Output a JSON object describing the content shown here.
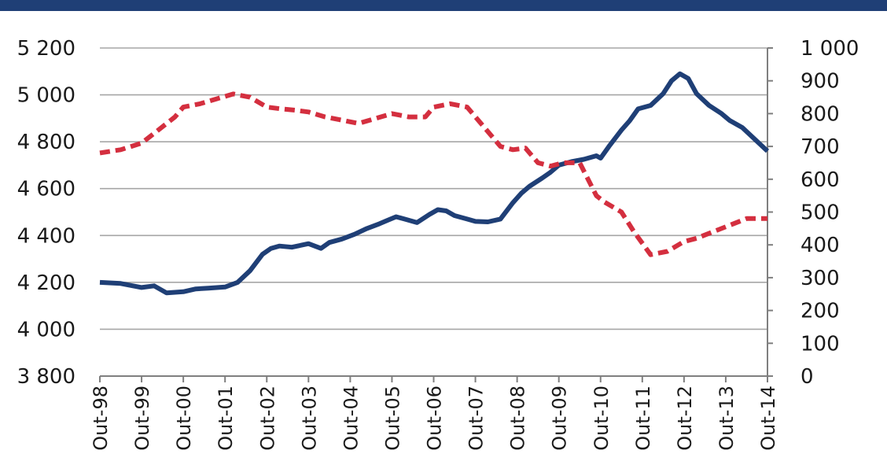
{
  "header": {
    "banner_text": "",
    "banner_color": "#1f3f76"
  },
  "chart_data": {
    "type": "line",
    "title": "",
    "xlabel": "",
    "ylabel": "",
    "y2label": "",
    "grid": "horizontal",
    "legend": "none",
    "x_tick_labels": [
      "Out-98",
      "Out-99",
      "Out-00",
      "Out-01",
      "Out-02",
      "Out-03",
      "Out-04",
      "Out-05",
      "Out-06",
      "Out-07",
      "Out-08",
      "Out-09",
      "Out-10",
      "Out-11",
      "Out-12",
      "Out-13",
      "Out-14"
    ],
    "y_left": {
      "range": [
        3800,
        5200
      ],
      "ticks": [
        3800,
        4000,
        4200,
        4400,
        4600,
        4800,
        5000,
        5200
      ],
      "tick_labels": [
        "3 800",
        "4 000",
        "4 200",
        "4 400",
        "4 600",
        "4 800",
        "5 000",
        "5 200"
      ]
    },
    "y_right": {
      "range": [
        0,
        1000
      ],
      "ticks": [
        0,
        100,
        200,
        300,
        400,
        500,
        600,
        700,
        800,
        900,
        1000
      ],
      "tick_labels": [
        "0",
        "100",
        "200",
        "300",
        "400",
        "500",
        "600",
        "700",
        "800",
        "900",
        "1 000"
      ]
    },
    "series": [
      {
        "axis": "left",
        "style": "solid",
        "color": "#1f3f76",
        "x": [
          0,
          0.5,
          1,
          1.3,
          1.6,
          2,
          2.3,
          2.6,
          3,
          3.3,
          3.6,
          3.9,
          4.1,
          4.3,
          4.6,
          5,
          5.3,
          5.5,
          5.8,
          6.1,
          6.4,
          6.7,
          6.9,
          7.1,
          7.3,
          7.6,
          7.9,
          8.1,
          8.3,
          8.5,
          8.8,
          9,
          9.3,
          9.6,
          9.9,
          10.1,
          10.3,
          10.6,
          10.8,
          11,
          11.3,
          11.6,
          11.9,
          12,
          12.2,
          12.5,
          12.7,
          12.9,
          13.2,
          13.5,
          13.7,
          13.9,
          14.1,
          14.3,
          14.6,
          14.9,
          15.1,
          15.4,
          15.7,
          16
        ],
        "y": [
          4200,
          4195,
          4178,
          4185,
          4155,
          4160,
          4172,
          4175,
          4180,
          4200,
          4250,
          4320,
          4345,
          4355,
          4350,
          4365,
          4345,
          4370,
          4385,
          4405,
          4430,
          4450,
          4465,
          4480,
          4470,
          4455,
          4490,
          4510,
          4505,
          4485,
          4470,
          4460,
          4458,
          4470,
          4540,
          4580,
          4610,
          4645,
          4670,
          4700,
          4715,
          4725,
          4740,
          4730,
          4780,
          4850,
          4890,
          4940,
          4955,
          5005,
          5060,
          5090,
          5070,
          5005,
          4955,
          4920,
          4890,
          4860,
          4810,
          4760
        ]
      },
      {
        "axis": "right",
        "style": "dashed",
        "color": "#d42f3f",
        "x": [
          0,
          0.5,
          1,
          1.4,
          1.8,
          2,
          2.4,
          2.8,
          3.2,
          3.6,
          4,
          4.3,
          4.7,
          5,
          5.4,
          5.8,
          6.2,
          6.6,
          7,
          7.4,
          7.8,
          8,
          8.4,
          8.8,
          9.2,
          9.6,
          9.9,
          10.2,
          10.5,
          10.8,
          11.1,
          11.5,
          11.9,
          12.1,
          12.5,
          12.8,
          13.2,
          13.6,
          14,
          14.3,
          14.7,
          15.1,
          15.5,
          16
        ],
        "y": [
          680,
          690,
          710,
          750,
          790,
          820,
          830,
          845,
          860,
          850,
          820,
          815,
          810,
          805,
          790,
          780,
          770,
          785,
          800,
          790,
          790,
          820,
          830,
          820,
          760,
          700,
          690,
          695,
          650,
          640,
          650,
          650,
          550,
          530,
          500,
          440,
          370,
          380,
          410,
          420,
          440,
          460,
          480,
          480
        ]
      }
    ]
  }
}
